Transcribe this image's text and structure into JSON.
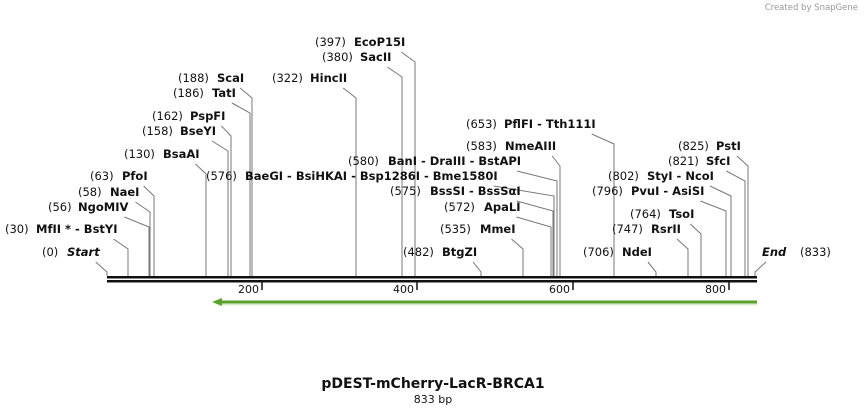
{
  "watermark": "Created by SnapGene",
  "sites": [
    {
      "position": "(0)",
      "name": "Start"
    },
    {
      "position": "(30)",
      "name": "MfII * - BstYI"
    },
    {
      "position": "(56)",
      "name": "NgoMIV"
    },
    {
      "position": "(58)",
      "name": "NaeI"
    },
    {
      "position": "(63)",
      "name": "PfoI"
    },
    {
      "position": "(130)",
      "name": "BsaAI"
    },
    {
      "position": "(158)",
      "name": "BseYI"
    },
    {
      "position": "(162)",
      "name": "PspFI"
    },
    {
      "position": "(186)",
      "name": "TatI"
    },
    {
      "position": "(188)",
      "name": "ScaI"
    },
    {
      "position": "(576)",
      "name": "BaeGI - BsiHKAI - Bsp1286I - Bme1580I"
    },
    {
      "position": "(322)",
      "name": "HincII"
    },
    {
      "position": "(397)",
      "name": "EcoP15I"
    },
    {
      "position": "(380)",
      "name": "SacII"
    },
    {
      "position": "(580)",
      "name": "BanI - DraIII - BstAPI"
    },
    {
      "position": "(575)",
      "name": "BssSI - BssSαI"
    },
    {
      "position": "(572)",
      "name": "ApaLI"
    },
    {
      "position": "(535)",
      "name": "MmeI"
    },
    {
      "position": "(482)",
      "name": "BtgZI"
    },
    {
      "position": "(653)",
      "name": "PflFI - Tth111I"
    },
    {
      "position": "(583)",
      "name": "NmeAIII"
    },
    {
      "position": "(706)",
      "name": "NdeI"
    },
    {
      "position": "(802)",
      "name": "StyI - NcoI"
    },
    {
      "position": "(796)",
      "name": "PvuI - AsiSI"
    },
    {
      "position": "(764)",
      "name": "TsoI"
    },
    {
      "position": "(747)",
      "name": "RsrII"
    },
    {
      "position": "(825)",
      "name": "PstI"
    },
    {
      "position": "(821)",
      "name": "SfcI"
    },
    {
      "position": "(833)",
      "name": "End"
    }
  ],
  "ruler": {
    "ticks": [
      "200",
      "400",
      "600",
      "800"
    ]
  },
  "title": "pDEST-mCherry-LacR-BRCA1",
  "subtitle": "833 bp"
}
